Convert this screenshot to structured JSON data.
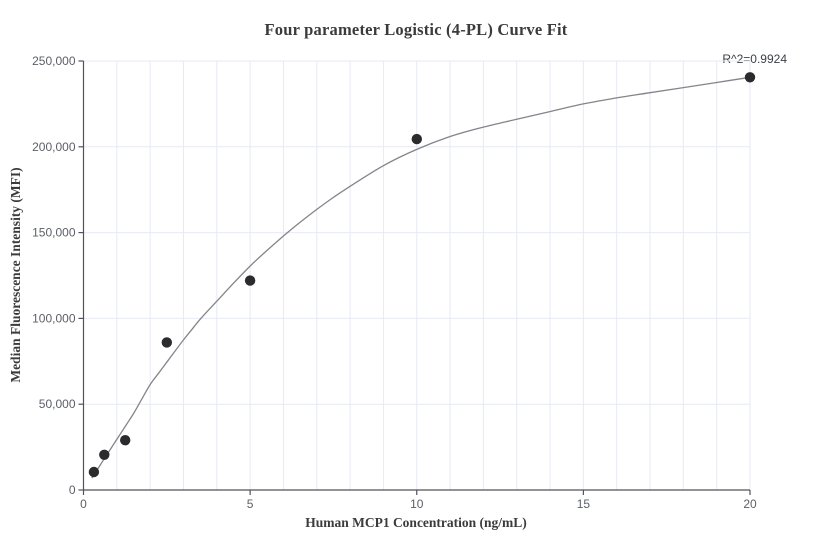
{
  "chart_data": {
    "type": "scatter",
    "title": "Four parameter Logistic (4-PL) Curve Fit",
    "xlabel": "Human MCP1 Concentration (ng/mL)",
    "ylabel": "Median Fluorescence Intensity (MFI)",
    "annotation": "R^2=0.9924",
    "xlim": [
      0,
      20
    ],
    "ylim": [
      0,
      250000
    ],
    "grid": true,
    "legend_position": "none",
    "x_ticks": [
      {
        "value": 0,
        "label": "0"
      },
      {
        "value": 5,
        "label": "5"
      },
      {
        "value": 10,
        "label": "10"
      },
      {
        "value": 15,
        "label": "15"
      },
      {
        "value": 20,
        "label": "20"
      }
    ],
    "y_ticks": [
      {
        "value": 0,
        "label": "0"
      },
      {
        "value": 50000,
        "label": "50,000"
      },
      {
        "value": 100000,
        "label": "100,000"
      },
      {
        "value": 150000,
        "label": "150,000"
      },
      {
        "value": 200000,
        "label": "200,000"
      },
      {
        "value": 250000,
        "label": "250,000"
      }
    ],
    "x_minor_grid_step": 1,
    "series": [
      {
        "name": "standard-points",
        "type": "scatter",
        "points": [
          {
            "x": 0.3125,
            "y": 10500
          },
          {
            "x": 0.625,
            "y": 20500
          },
          {
            "x": 1.25,
            "y": 29000
          },
          {
            "x": 2.5,
            "y": 86000
          },
          {
            "x": 5,
            "y": 122000
          },
          {
            "x": 10,
            "y": 204500
          },
          {
            "x": 20,
            "y": 240500
          }
        ]
      },
      {
        "name": "4pl-fit-curve",
        "type": "line",
        "points": [
          [
            0.25,
            7000
          ],
          [
            0.5,
            14500
          ],
          [
            0.75,
            22000
          ],
          [
            1.0,
            29500
          ],
          [
            1.25,
            37000
          ],
          [
            1.5,
            44500
          ],
          [
            1.75,
            53000
          ],
          [
            2.0,
            61500
          ],
          [
            2.25,
            68000
          ],
          [
            2.5,
            74500
          ],
          [
            2.75,
            81000
          ],
          [
            3.0,
            87500
          ],
          [
            3.25,
            93500
          ],
          [
            3.5,
            99500
          ],
          [
            4.0,
            110000
          ],
          [
            4.5,
            120500
          ],
          [
            5.0,
            130500
          ],
          [
            5.5,
            139500
          ],
          [
            6.0,
            148000
          ],
          [
            6.5,
            156000
          ],
          [
            7.0,
            163500
          ],
          [
            7.5,
            170500
          ],
          [
            8.0,
            177000
          ],
          [
            9.0,
            189000
          ],
          [
            10.0,
            198500
          ],
          [
            11.0,
            206000
          ],
          [
            12.0,
            211500
          ],
          [
            13.0,
            216000
          ],
          [
            14.0,
            220500
          ],
          [
            15.0,
            225000
          ],
          [
            16.0,
            228500
          ],
          [
            17.0,
            231500
          ],
          [
            18.0,
            234500
          ],
          [
            19.0,
            237500
          ],
          [
            20.0,
            240500
          ]
        ]
      }
    ],
    "colors": {
      "background": "#ffffff",
      "grid": "#e7eaf4",
      "axis": "#52525a",
      "tick_label": "#5c5f66",
      "curve": "#84848c",
      "point": "#2b2b2e",
      "text": "#3b3b3b",
      "annotation": "#3c4048"
    }
  }
}
